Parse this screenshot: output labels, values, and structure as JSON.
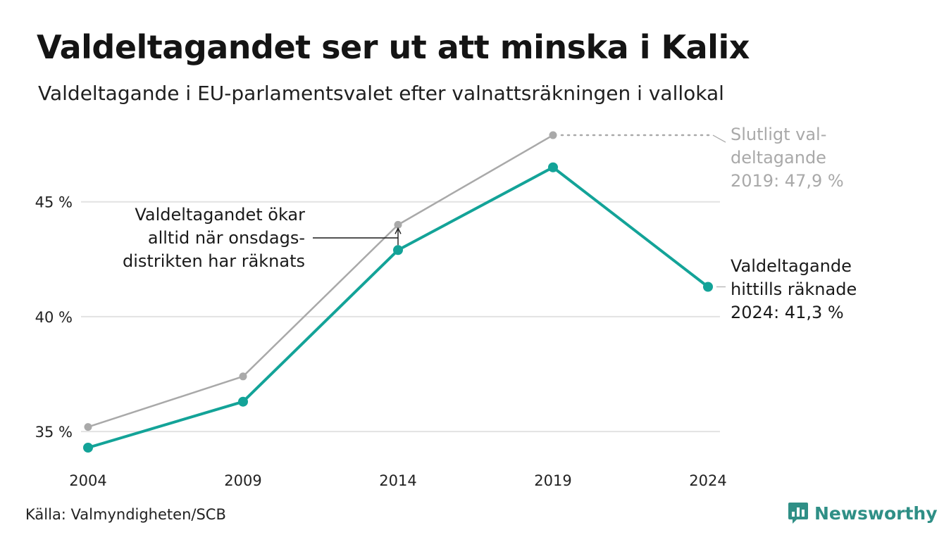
{
  "header": {
    "title": "Valdeltagandet ser ut att minska i Kalix",
    "subtitle": "Valdeltagande i EU-parlamentsvalet efter valnattsräkningen i vallokal"
  },
  "footer": {
    "source": "Källa: Valmyndigheten/SCB",
    "brand": "Newsworthy"
  },
  "chart_data": {
    "type": "line",
    "x": [
      2004,
      2009,
      2014,
      2019,
      2024
    ],
    "x_tick_labels": [
      "2004",
      "2009",
      "2014",
      "2019",
      "2024"
    ],
    "y_ticks": [
      35,
      40,
      45
    ],
    "y_tick_labels": [
      "35 %",
      "40 %",
      "45 %"
    ],
    "ylim": [
      34.3,
      48.3
    ],
    "grid": true,
    "series": [
      {
        "values": [
          35.2,
          37.4,
          44.0,
          47.9,
          null
        ],
        "color": "#a9a9a9"
      },
      {
        "values": [
          34.3,
          36.3,
          42.9,
          46.5,
          41.3
        ],
        "color": "#13a398"
      }
    ],
    "annotations": {
      "final_2019": {
        "lines": [
          "Slutligt val-",
          "deltagande",
          "2019: 47,9 %"
        ],
        "color": "#a9a9a9"
      },
      "counted_2024": {
        "lines": [
          "Valdeltagande",
          "hittills räknade",
          "2024: 41,3 %"
        ],
        "color": "#1a1a1a"
      },
      "note_2014": {
        "lines": [
          "Valdeltagandet ökar",
          "alltid när onsdags-",
          "distrikten har räknats"
        ],
        "color": "#1a1a1a"
      }
    }
  },
  "colors": {
    "accent": "#13a398",
    "final": "#a9a9a9",
    "grid": "#e2e2e2"
  },
  "icons": {
    "brand": "bar-chart-bubble-icon"
  }
}
